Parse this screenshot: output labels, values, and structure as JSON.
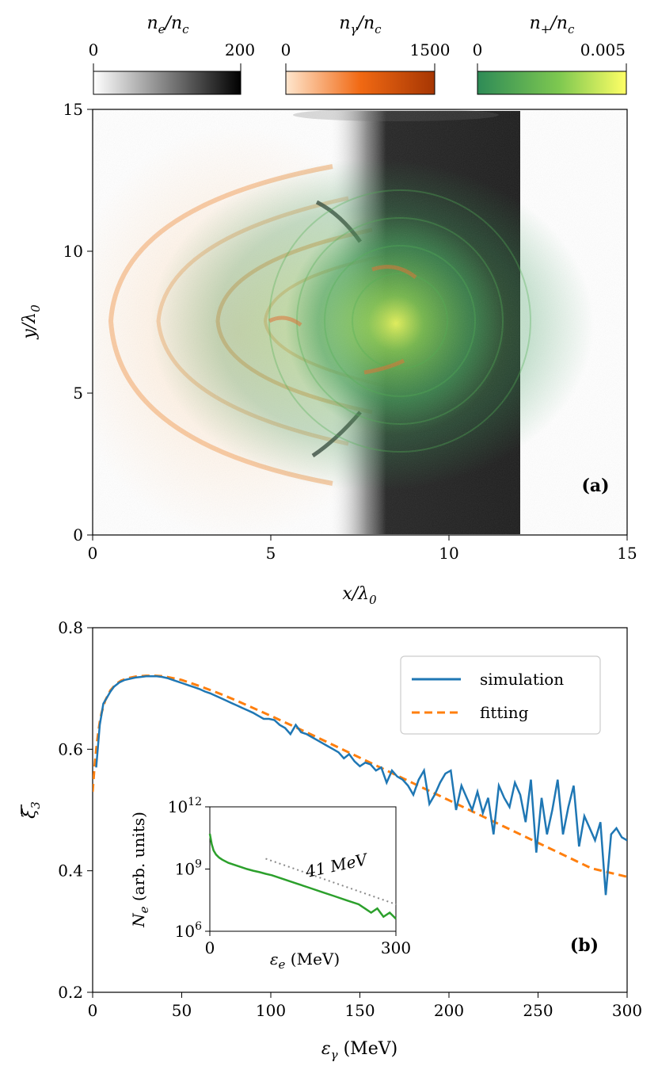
{
  "chart_data": [
    {
      "id": "a",
      "type": "heatmap",
      "panel_label": "(a)",
      "xlabel": {
        "main": "x/λ",
        "sub": "0"
      },
      "ylabel": {
        "main": "y/λ",
        "sub": "0"
      },
      "xlim": [
        0,
        15
      ],
      "ylim": [
        0,
        15
      ],
      "xticks": [
        "0",
        "5",
        "10",
        "15"
      ],
      "yticks": [
        "0",
        "5",
        "10",
        "15"
      ],
      "colorbars": [
        {
          "label": {
            "n": "n",
            "nsub": "e",
            "mid": "/n",
            "dsub": "c"
          },
          "min": "0",
          "max": "200",
          "colors": [
            "#ffffff",
            "#000000"
          ]
        },
        {
          "label": {
            "n": "n",
            "nsub": "γ",
            "mid": "/n",
            "dsub": "c"
          },
          "min": "0",
          "max": "1500",
          "colors": [
            "#fee6ce",
            "#f16913",
            "#a63603"
          ]
        },
        {
          "label": {
            "n": "n",
            "nsub": "+",
            "mid": "/n",
            "dsub": "c"
          },
          "min": "0",
          "max": "0.005",
          "colors": [
            "#2e8b57",
            "#7ec850",
            "#ffff66"
          ]
        }
      ],
      "regions": {
        "electron_slab_x": [
          7.8,
          12.0
        ],
        "photon_arcs_center": [
          6.2,
          7.5
        ],
        "positron_center": [
          8.6,
          7.4
        ]
      }
    },
    {
      "id": "b",
      "type": "line",
      "panel_label": "(b)",
      "xlabel": {
        "main": "ε",
        "sub": "γ",
        "unit": " (MeV)"
      },
      "ylabel": {
        "main": "ξ",
        "sub": "3"
      },
      "xlim": [
        0,
        300
      ],
      "ylim": [
        0.2,
        0.8
      ],
      "xticks": [
        "0",
        "50",
        "100",
        "150",
        "200",
        "250",
        "300"
      ],
      "yticks": [
        "0.2",
        "0.4",
        "0.6",
        "0.8"
      ],
      "series": [
        {
          "name": "simulation",
          "color": "#1f77b4",
          "dash": "solid",
          "x": [
            2,
            4,
            6,
            8,
            10,
            12,
            15,
            18,
            21,
            24,
            27,
            30,
            33,
            36,
            39,
            42,
            45,
            48,
            51,
            54,
            57,
            60,
            63,
            66,
            69,
            72,
            75,
            78,
            81,
            84,
            87,
            90,
            93,
            96,
            99,
            102,
            105,
            108,
            111,
            114,
            117,
            120,
            123,
            126,
            129,
            132,
            135,
            138,
            141,
            144,
            147,
            150,
            153,
            156,
            159,
            162,
            165,
            168,
            171,
            174,
            177,
            180,
            183,
            186,
            189,
            192,
            195,
            198,
            201,
            204,
            207,
            210,
            213,
            216,
            219,
            222,
            225,
            228,
            231,
            234,
            237,
            240,
            243,
            246,
            249,
            252,
            255,
            258,
            261,
            264,
            267,
            270,
            273,
            276,
            279,
            282,
            285,
            288,
            291,
            294,
            297,
            300
          ],
          "y": [
            0.57,
            0.64,
            0.675,
            0.685,
            0.695,
            0.703,
            0.71,
            0.714,
            0.716,
            0.718,
            0.719,
            0.72,
            0.72,
            0.72,
            0.719,
            0.717,
            0.714,
            0.711,
            0.708,
            0.705,
            0.702,
            0.699,
            0.695,
            0.692,
            0.688,
            0.684,
            0.68,
            0.676,
            0.672,
            0.668,
            0.664,
            0.66,
            0.655,
            0.65,
            0.65,
            0.648,
            0.64,
            0.635,
            0.625,
            0.64,
            0.628,
            0.625,
            0.62,
            0.615,
            0.61,
            0.605,
            0.6,
            0.595,
            0.585,
            0.592,
            0.58,
            0.572,
            0.578,
            0.575,
            0.565,
            0.57,
            0.545,
            0.565,
            0.555,
            0.55,
            0.54,
            0.525,
            0.55,
            0.565,
            0.51,
            0.525,
            0.545,
            0.56,
            0.565,
            0.5,
            0.54,
            0.52,
            0.5,
            0.53,
            0.495,
            0.52,
            0.46,
            0.54,
            0.52,
            0.505,
            0.545,
            0.525,
            0.48,
            0.55,
            0.43,
            0.52,
            0.46,
            0.5,
            0.55,
            0.46,
            0.505,
            0.54,
            0.44,
            0.49,
            0.47,
            0.45,
            0.48,
            0.36,
            0.46,
            0.47,
            0.455,
            0.45
          ]
        },
        {
          "name": "fitting",
          "color": "#ff7f0e",
          "dash": "dashed",
          "x": [
            0,
            1,
            2,
            3,
            4,
            5,
            7,
            10,
            13,
            16,
            20,
            25,
            30,
            35,
            40,
            50,
            60,
            70,
            80,
            100,
            120,
            140,
            160,
            180,
            200,
            220,
            240,
            260,
            280,
            300
          ],
          "y": [
            0.53,
            0.57,
            0.6,
            0.625,
            0.645,
            0.66,
            0.68,
            0.697,
            0.707,
            0.713,
            0.717,
            0.72,
            0.721,
            0.721,
            0.72,
            0.714,
            0.704,
            0.693,
            0.681,
            0.655,
            0.628,
            0.6,
            0.572,
            0.544,
            0.516,
            0.488,
            0.46,
            0.432,
            0.404,
            0.39
          ]
        }
      ],
      "legend": {
        "position": "upper right"
      },
      "inset": {
        "type": "line",
        "xlabel": {
          "main": "ε",
          "sub": "e",
          "unit": " (MeV)"
        },
        "ylabel": {
          "main": "N",
          "sub": "e",
          "unit": " (arb. units)"
        },
        "xlim": [
          0,
          300
        ],
        "ylim_exp": [
          6,
          12
        ],
        "xticks": [
          "0",
          "300"
        ],
        "yticks": [
          {
            "base": "10",
            "exp": "6",
            "value": 6
          },
          {
            "base": "10",
            "exp": "9",
            "value": 9
          },
          {
            "base": "10",
            "exp": "12",
            "value": 12
          }
        ],
        "annotation": "41 MeV",
        "series": [
          {
            "name": "N_e",
            "color": "#2ca02c",
            "x": [
              0,
              3,
              6,
              10,
              15,
              20,
              30,
              40,
              50,
              60,
              70,
              80,
              90,
              100,
              120,
              140,
              160,
              180,
              200,
              220,
              240,
              250,
              260,
              270,
              280,
              290,
              300
            ],
            "log10y": [
              10.7,
              10.2,
              9.9,
              9.7,
              9.55,
              9.45,
              9.3,
              9.2,
              9.1,
              9.0,
              8.92,
              8.85,
              8.77,
              8.7,
              8.5,
              8.3,
              8.1,
              7.9,
              7.7,
              7.5,
              7.3,
              7.1,
              6.9,
              7.1,
              6.7,
              6.9,
              6.6
            ]
          },
          {
            "name": "exp fit",
            "color": "#888888",
            "x": [
              90,
              300
            ],
            "log10y": [
              9.5,
              7.3
            ]
          }
        ]
      }
    }
  ]
}
